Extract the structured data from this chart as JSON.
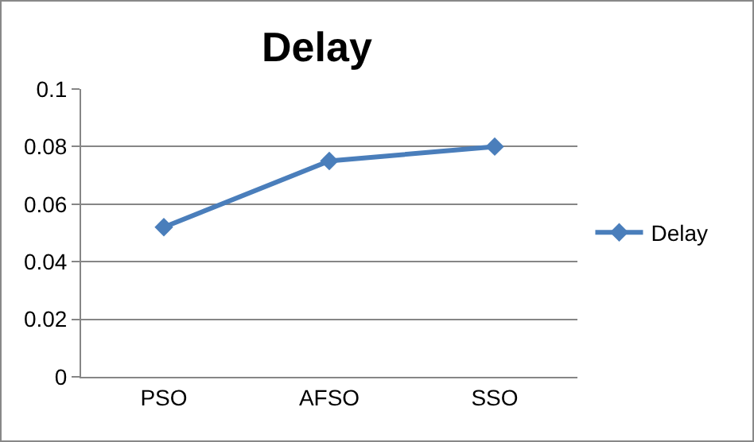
{
  "chart_data": {
    "type": "line",
    "title": "Delay",
    "categories": [
      "PSO",
      "AFSO",
      "SSO"
    ],
    "series": [
      {
        "name": "Delay",
        "color": "#4a7ebb",
        "values": [
          0.052,
          0.075,
          0.08
        ]
      }
    ],
    "ylim": [
      0,
      0.1
    ],
    "yticks": [
      0,
      0.02,
      0.04,
      0.06,
      0.08,
      0.1
    ],
    "grid": "y",
    "legend": "right",
    "marker": "diamond",
    "line_style": "solid"
  }
}
